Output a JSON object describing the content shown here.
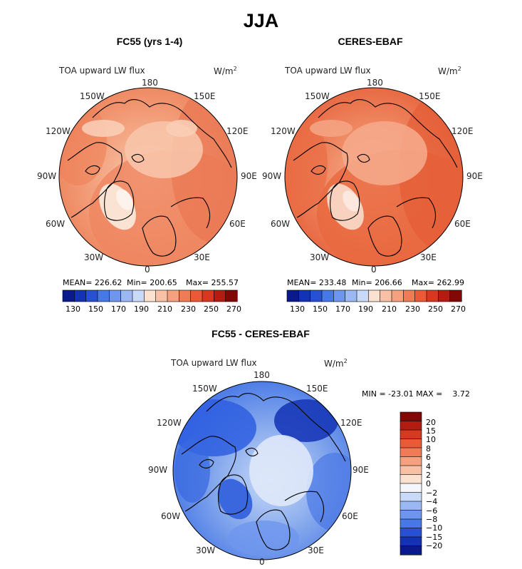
{
  "title": "JJA",
  "panels": [
    {
      "id": "model",
      "title": "FC55 (yrs 1-4)",
      "variable": "TOA upward LW flux",
      "units": "W/m",
      "units_sup": "2",
      "stats": {
        "mean": "MEAN= 226.62",
        "min": "Min= 200.65",
        "max": "Max= 255.57"
      },
      "colorbar_ticks": [
        "130",
        "150",
        "170",
        "190",
        "210",
        "230",
        "250",
        "270"
      ]
    },
    {
      "id": "obs",
      "title": "CERES-EBAF",
      "variable": "TOA upward LW flux",
      "units": "W/m",
      "units_sup": "2",
      "stats": {
        "mean": "MEAN= 233.48",
        "min": "Min= 206.66",
        "max": "Max= 262.99"
      },
      "colorbar_ticks": [
        "130",
        "150",
        "170",
        "190",
        "210",
        "230",
        "250",
        "270"
      ]
    },
    {
      "id": "diff",
      "title": "FC55 - CERES-EBAF",
      "variable": "TOA upward LW flux",
      "units": "W/m",
      "units_sup": "2",
      "stats": {
        "range": "MIN = -23.01 MAX =    3.72"
      },
      "colorbar_ticks": [
        "20",
        "15",
        "10",
        "8",
        "6",
        "4",
        "2",
        "0",
        "−2",
        "−4",
        "−6",
        "−8",
        "−10",
        "−15",
        "−20"
      ]
    }
  ],
  "longitude_labels": {
    "top": "180",
    "bottom": "0",
    "left_top": "150W",
    "left_upper": "120W",
    "left_mid": "90W",
    "left_lower": "60W",
    "left_bottom": "30W",
    "right_top": "150E",
    "right_upper": "120E",
    "right_mid": "90E",
    "right_lower": "60E",
    "right_bottom": "30E"
  },
  "colors": {
    "flux_scale": [
      "#0a1a8c",
      "#1432b4",
      "#2850d2",
      "#4678e6",
      "#6e96ee",
      "#9bb8f2",
      "#c8daf8",
      "#fbe1d0",
      "#f8c0a4",
      "#f5a07e",
      "#f07c57",
      "#ea5a36",
      "#d83820",
      "#b41c12",
      "#820808"
    ],
    "diff_scale": [
      "#820808",
      "#b41c12",
      "#d83820",
      "#ea5a36",
      "#f07c57",
      "#f5a07e",
      "#f8c0a4",
      "#fbe1d0",
      "#f4f6fc",
      "#c8daf8",
      "#9bb8f2",
      "#6e96ee",
      "#4678e6",
      "#2850d2",
      "#1432b4",
      "#0a1a8c"
    ]
  }
}
